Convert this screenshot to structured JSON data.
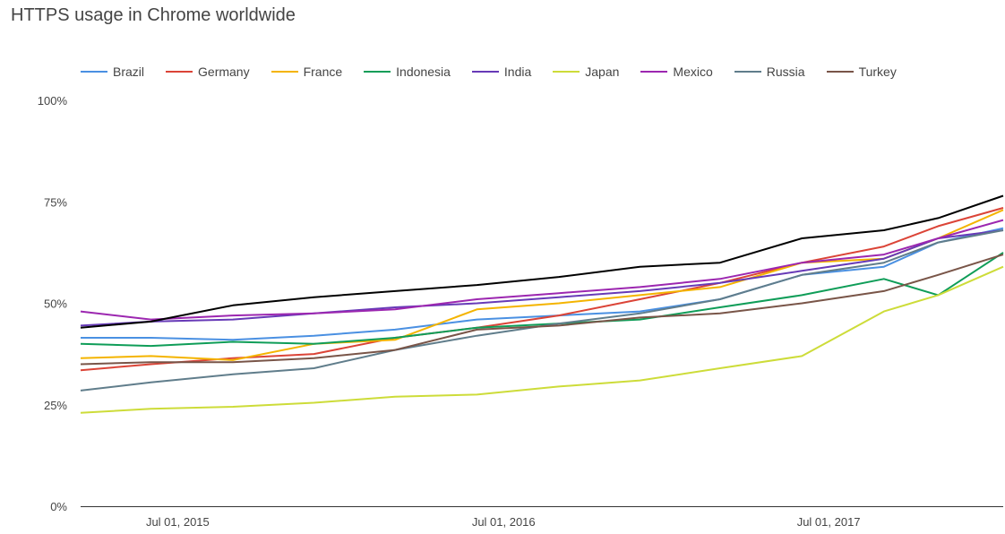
{
  "title": "HTTPS usage in Chrome worldwide",
  "chart_data": {
    "type": "line",
    "title": "HTTPS usage in Chrome worldwide",
    "legend_position": "top",
    "grid": false,
    "y_ticks": [
      "0%",
      "25%",
      "50%",
      "75%",
      "100%"
    ],
    "y_tick_values": [
      0,
      25,
      50,
      75,
      100
    ],
    "ylim": [
      0,
      100
    ],
    "xlim": [
      "2015-03-14",
      "2018-01-13"
    ],
    "x_ticks": [
      {
        "label": "Jul 01, 2015",
        "date": "2015-07-01"
      },
      {
        "label": "Jul 01, 2016",
        "date": "2016-07-01"
      },
      {
        "label": "Jul 01, 2017",
        "date": "2017-07-01"
      }
    ],
    "x": [
      "2015-03-14",
      "2015-06-01",
      "2015-09-01",
      "2015-12-01",
      "2016-03-01",
      "2016-06-01",
      "2016-09-01",
      "2016-12-01",
      "2017-03-01",
      "2017-06-01",
      "2017-09-01",
      "2017-11-01",
      "2018-01-13"
    ],
    "series": [
      {
        "name": "Brazil",
        "color": "#4a90e2",
        "values": [
          41.5,
          41.5,
          41,
          42,
          43.5,
          46,
          47,
          48,
          51,
          57,
          59,
          65,
          68.5
        ]
      },
      {
        "name": "Germany",
        "color": "#db4437",
        "values": [
          33.5,
          35,
          36.5,
          37.5,
          41.5,
          44,
          47,
          51,
          55,
          60,
          64,
          69,
          73.5
        ]
      },
      {
        "name": "France",
        "color": "#f4b400",
        "values": [
          36.5,
          37,
          36,
          40,
          41,
          48.5,
          50,
          52,
          54,
          60,
          61,
          66,
          73
        ]
      },
      {
        "name": "Indonesia",
        "color": "#0f9d58",
        "values": [
          40,
          39.5,
          40.5,
          40,
          41.5,
          44,
          45,
          46,
          49,
          52,
          56,
          52,
          62.5
        ]
      },
      {
        "name": "India",
        "color": "#673ab7",
        "values": [
          44.5,
          45.5,
          46,
          47.5,
          49,
          50,
          51.5,
          53,
          55,
          58,
          61,
          66,
          68
        ]
      },
      {
        "name": "Japan",
        "color": "#cddc39",
        "values": [
          23,
          24,
          24.5,
          25.5,
          27,
          27.5,
          29.5,
          31,
          34,
          37,
          48,
          52,
          59
        ]
      },
      {
        "name": "Mexico",
        "color": "#9c27b0",
        "values": [
          48,
          46,
          47,
          47.5,
          48.5,
          51,
          52.5,
          54,
          56,
          60,
          62,
          66,
          70.5
        ]
      },
      {
        "name": "Russia",
        "color": "#607d8b",
        "values": [
          28.5,
          30.5,
          32.5,
          34,
          38.5,
          42,
          45,
          47.5,
          51,
          57,
          60,
          65,
          68
        ]
      },
      {
        "name": "Turkey",
        "color": "#795548",
        "values": [
          35,
          35.5,
          35.5,
          36.5,
          38.5,
          43.5,
          44.5,
          46.5,
          47.5,
          50,
          53,
          57,
          62
        ]
      },
      {
        "color": "#000000",
        "values": [
          44,
          45.5,
          49.5,
          51.5,
          53,
          54.5,
          56.5,
          59,
          60,
          66,
          68,
          71,
          76.5
        ]
      }
    ]
  }
}
